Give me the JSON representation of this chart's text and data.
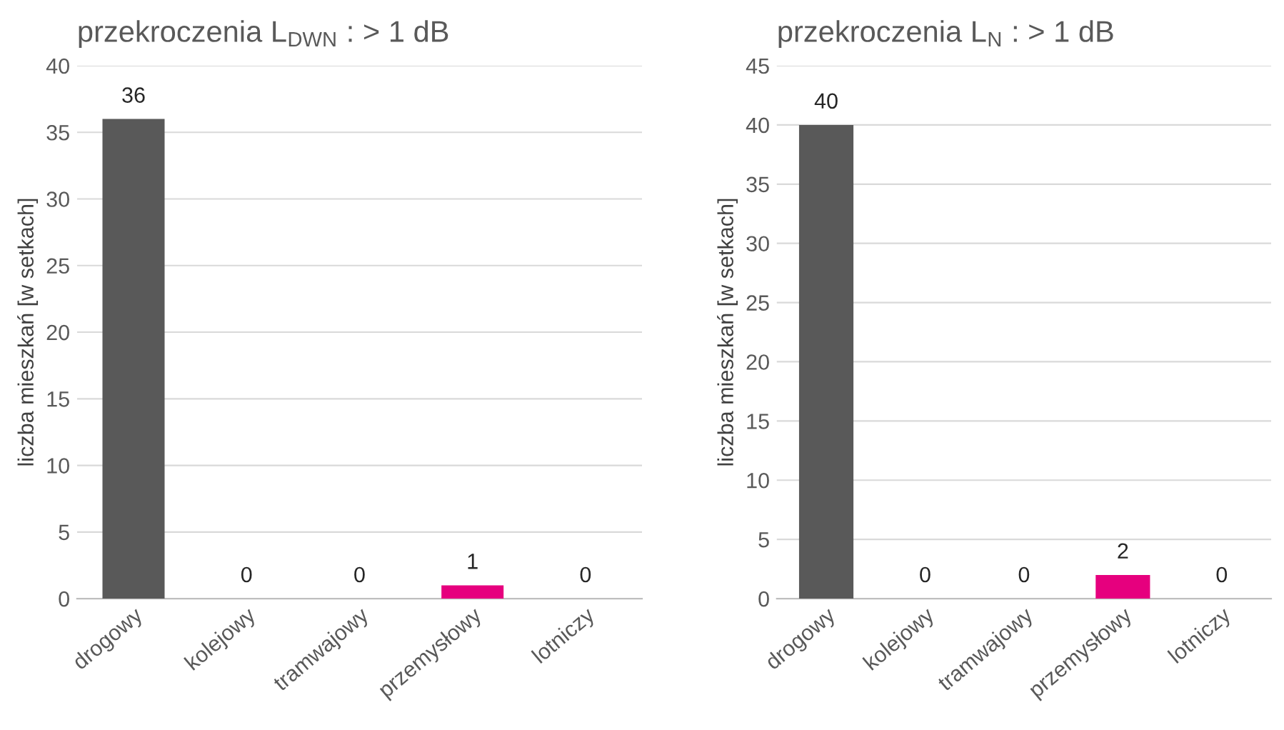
{
  "chart_data": [
    {
      "type": "bar",
      "title": "przekroczenia L$_{DWN}$ : > 1 dB",
      "ylabel": "liczba mieszkań [w setkach]",
      "categories": [
        "drogowy",
        "kolejowy",
        "tramwajowy",
        "przemysłowy",
        "lotniczy"
      ],
      "values": [
        36,
        0,
        0,
        1,
        0
      ],
      "colors": [
        "#595959",
        "#595959",
        "#595959",
        "#e6007e",
        "#595959"
      ],
      "ylim": [
        0,
        40
      ],
      "yticks": [
        0,
        5,
        10,
        15,
        20,
        25,
        30,
        35,
        40
      ],
      "grid": "y",
      "data_labels": true,
      "legend": false
    },
    {
      "type": "bar",
      "title": "przekroczenia L$_{N}$ : > 1 dB",
      "ylabel": "liczba mieszkań [w setkach]",
      "categories": [
        "drogowy",
        "kolejowy",
        "tramwajowy",
        "przemysłowy",
        "lotniczy"
      ],
      "values": [
        40,
        0,
        0,
        2,
        0
      ],
      "colors": [
        "#595959",
        "#595959",
        "#595959",
        "#e6007e",
        "#595959"
      ],
      "ylim": [
        0,
        45
      ],
      "yticks": [
        0,
        5,
        10,
        15,
        20,
        25,
        30,
        35,
        40,
        45
      ],
      "grid": "y",
      "data_labels": true,
      "legend": false
    }
  ]
}
